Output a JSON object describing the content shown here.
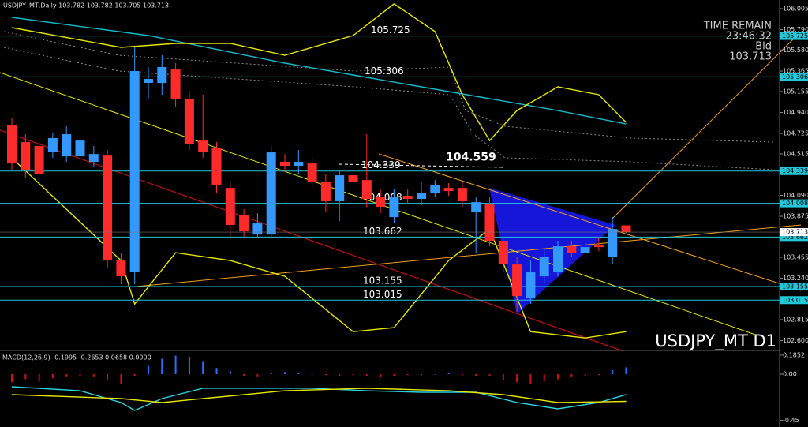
{
  "header": "USDJPY_MT,Daily  103.782 103.782 103.705 103.713",
  "time_remain_label": "TIME REMAIN",
  "time_remain": "23:46:32",
  "bid_label": "Bid",
  "chart_data": [
    {
      "type": "candlestick",
      "symbol_label": "USDJPY_MT D1",
      "ylim": [
        102.507,
        106.094
      ],
      "yticks": [
        106.005,
        {
          "value": 105.79,
          "label": "105.790"
        },
        {
          "value": 105.58,
          "label": "105.580"
        },
        105.365,
        105.155,
        {
          "value": 104.94,
          "label": "104.940"
        },
        104.725,
        104.515,
        {
          "value": 104.09,
          "label": "104.090"
        },
        103.875,
        103.455,
        {
          "value": 103.24,
          "label": "103.240"
        },
        102.815,
        {
          "value": 102.6,
          "label": "102.600"
        }
      ],
      "up_color": "#3399ff",
      "down_color": "#ff2a2a",
      "open": [
        104.814,
        104.636,
        104.596,
        104.539,
        104.49,
        104.49,
        104.434,
        104.498,
        103.421,
        103.3,
        105.244,
        105.244,
        105.381,
        105.082,
        104.652,
        104.571,
        104.166,
        103.891,
        103.688,
        103.688,
        104.434,
        104.393,
        104.417,
        104.231,
        104.029,
        104.296,
        104.247,
        104.069,
        103.867,
        104.085,
        104.053,
        104.11,
        104.166,
        104.166,
        103.923,
        104.004,
        103.624,
        103.381,
        103.032,
        103.259,
        103.3,
        103.567,
        103.502,
        103.583,
        103.462,
        103.782
      ],
      "high": [
        104.879,
        104.717,
        104.677,
        104.733,
        104.798,
        104.717,
        104.596,
        104.555,
        103.502,
        105.608,
        105.406,
        105.527,
        105.446,
        105.163,
        105.122,
        104.636,
        104.231,
        103.948,
        103.907,
        104.596,
        104.514,
        104.555,
        104.474,
        104.312,
        104.353,
        104.514,
        104.717,
        104.15,
        104.15,
        104.15,
        104.231,
        104.247,
        104.215,
        104.231,
        104.069,
        104.069,
        103.664,
        103.462,
        103.421,
        103.543,
        103.624,
        103.624,
        103.599,
        103.664,
        103.867,
        103.782
      ],
      "low": [
        104.353,
        104.272,
        104.231,
        104.474,
        104.434,
        104.434,
        104.377,
        103.34,
        103.178,
        103.178,
        105.082,
        105.122,
        105.001,
        104.555,
        104.474,
        104.11,
        103.664,
        103.664,
        103.648,
        103.664,
        104.328,
        104.312,
        104.15,
        103.923,
        103.826,
        104.191,
        103.972,
        103.907,
        103.81,
        104.004,
        103.988,
        104.069,
        104.085,
        103.972,
        103.502,
        103.567,
        103.3,
        102.895,
        102.976,
        103.194,
        103.259,
        103.462,
        103.462,
        103.518,
        103.381,
        103.705
      ],
      "close": [
        104.417,
        104.353,
        104.312,
        104.677,
        104.717,
        104.652,
        104.514,
        103.421,
        103.259,
        105.365,
        105.284,
        105.406,
        105.082,
        104.62,
        104.539,
        104.191,
        103.786,
        103.721,
        103.802,
        104.531,
        104.393,
        104.434,
        104.231,
        104.029,
        104.296,
        104.231,
        104.053,
        103.972,
        104.069,
        104.053,
        104.118,
        104.191,
        104.134,
        104.029,
        104.02,
        103.624,
        103.381,
        103.057,
        103.3,
        103.462,
        103.567,
        103.502,
        103.559,
        103.559,
        103.745,
        103.713
      ],
      "levels": [
        105.725,
        105.306,
        104.339,
        104.008,
        103.662,
        103.155,
        103.015
      ],
      "level_color": "#22c8d8",
      "bid": 103.713,
      "bid_color": "#ffffff",
      "peak": 104.559,
      "series": [
        {
          "color": "#19b8c8",
          "x": [
            0,
            10,
            20,
            25,
            30,
            35,
            40,
            45
          ],
          "values": [
            105.916,
            105.73,
            105.446,
            105.325,
            105.203,
            105.082,
            104.96,
            104.822
          ]
        },
        {
          "color": "#e6e600",
          "x": [
            0,
            8,
            12,
            16,
            20,
            25,
            28,
            31,
            33,
            35,
            37,
            40,
            43,
            45
          ],
          "values": [
            105.811,
            105.608,
            105.649,
            105.649,
            105.527,
            105.73,
            106.054,
            105.77,
            105.122,
            104.652,
            104.96,
            105.203,
            105.122,
            104.838
          ]
        },
        {
          "color": "#e6e600",
          "x": [
            0,
            8,
            9,
            12,
            16,
            20,
            25,
            28,
            32,
            35,
            38,
            42,
            45
          ],
          "values": [
            104.474,
            103.421,
            102.976,
            103.502,
            103.421,
            103.259,
            102.692,
            102.733,
            103.421,
            103.745,
            102.692,
            102.627,
            102.692
          ]
        }
      ]
    },
    {
      "type": "macd",
      "title": "MACD(12,26,9) -0.1995 -0.2653 0.0658 0.0000",
      "ylim": [
        -0.515,
        0.215
      ],
      "yticks": [
        0.1852,
        {
          "value": 0,
          "label": "0.00"
        },
        -0.45
      ],
      "up_color": "#2f6fff",
      "down_color": "#d01010",
      "histogram": [
        -0.08,
        -0.05,
        -0.07,
        -0.04,
        -0.03,
        -0.02,
        -0.03,
        -0.06,
        -0.1,
        -0.02,
        0.08,
        0.15,
        0.18,
        0.17,
        0.12,
        0.06,
        0.03,
        -0.02,
        -0.03,
        0.01,
        0.02,
        0.01,
        0,
        -0.01,
        -0.02,
        -0.01,
        -0.02,
        -0.03,
        -0.02,
        -0.01,
        -0.01,
        0,
        0.01,
        -0.01,
        -0.02,
        -0.02,
        -0.06,
        -0.08,
        -0.1,
        -0.07,
        -0.05,
        -0.03,
        -0.02,
        -0.01,
        0.04,
        0.0658
      ],
      "series": [
        {
          "color": "#2ad4e0",
          "x": [
            0,
            5,
            8,
            9,
            11,
            14,
            18,
            22,
            26,
            30,
            34,
            37,
            40,
            43,
            45
          ],
          "values": [
            -0.123,
            -0.162,
            -0.277,
            -0.354,
            -0.238,
            -0.138,
            -0.138,
            -0.138,
            -0.162,
            -0.177,
            -0.177,
            -0.277,
            -0.338,
            -0.277,
            -0.1995
          ]
        },
        {
          "color": "#e6e600",
          "x": [
            0,
            8,
            11,
            14,
            20,
            26,
            32,
            36,
            40,
            45
          ],
          "values": [
            -0.2,
            -0.238,
            -0.277,
            -0.238,
            -0.162,
            -0.138,
            -0.162,
            -0.2,
            -0.277,
            -0.2653
          ]
        }
      ]
    }
  ]
}
